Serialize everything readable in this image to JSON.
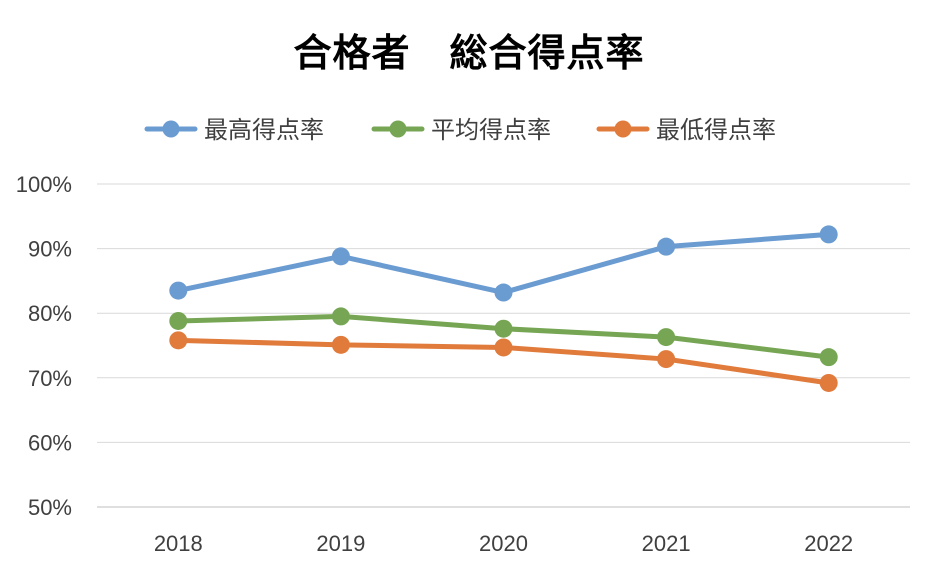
{
  "chart_data": {
    "type": "line",
    "title": "合格者　総合得点率",
    "categories": [
      "2018",
      "2019",
      "2020",
      "2021",
      "2022"
    ],
    "ylim": [
      0.5,
      1.0
    ],
    "yticks": [
      "50%",
      "60%",
      "70%",
      "80%",
      "90%",
      "100%"
    ],
    "grid": true,
    "legend_position": "top",
    "series": [
      {
        "name": "最高得点率",
        "color": "#6A9BD1",
        "values": [
          0.835,
          0.888,
          0.832,
          0.903,
          0.922
        ]
      },
      {
        "name": "平均得点率",
        "color": "#76A654",
        "values": [
          0.788,
          0.795,
          0.776,
          0.763,
          0.732
        ]
      },
      {
        "name": "最低得点率",
        "color": "#E07B3C",
        "values": [
          0.758,
          0.751,
          0.747,
          0.729,
          0.692
        ]
      }
    ]
  }
}
